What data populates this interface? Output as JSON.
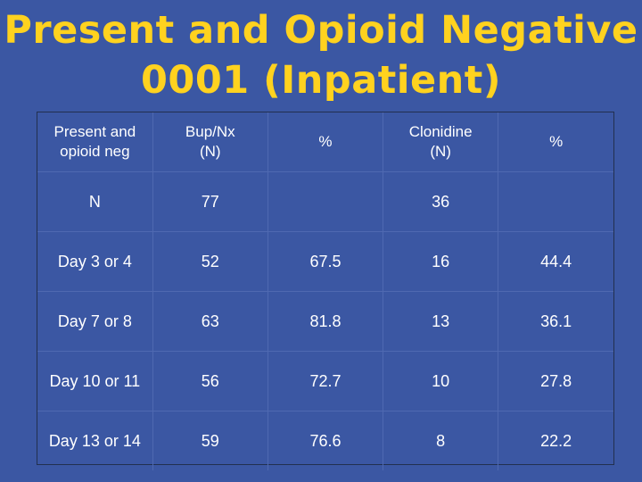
{
  "title": {
    "line1": "Present and Opioid Negative",
    "line2": "0001 (Inpatient)"
  },
  "table": {
    "headers": [
      {
        "line1": "Present and",
        "line2": "opioid neg"
      },
      {
        "line1": "Bup/Nx",
        "line2": "(N)"
      },
      {
        "line1": "",
        "line2": "%"
      },
      {
        "line1": "Clonidine",
        "line2": "(N)"
      },
      {
        "line1": "",
        "line2": "%"
      }
    ],
    "rows": [
      [
        "N",
        "77",
        "",
        "36",
        ""
      ],
      [
        "Day 3 or 4",
        "52",
        "67.5",
        "16",
        "44.4"
      ],
      [
        "Day 7 or 8",
        "63",
        "81.8",
        "13",
        "36.1"
      ],
      [
        "Day 10 or 11",
        "56",
        "72.7",
        "10",
        "27.8"
      ],
      [
        "Day 13 or 14",
        "59",
        "76.6",
        "8",
        "22.2"
      ]
    ]
  },
  "colors": {
    "background": "#3b57a3",
    "title": "#ffd21f",
    "text": "#ffffff"
  }
}
